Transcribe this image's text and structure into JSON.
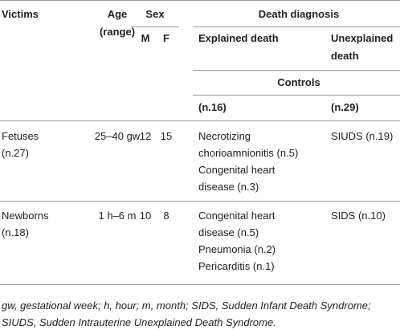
{
  "header": {
    "victims": "Victims",
    "age": [
      "Age",
      "(range)"
    ],
    "sex": "Sex",
    "sex_m": "M",
    "sex_f": "F",
    "death_diagnosis": "Death diagnosis",
    "explained": "Explained death",
    "unexplained": [
      "Unexplained",
      "death"
    ],
    "controls": "Controls",
    "explained_n": "(n.16)",
    "unexplained_n": "(n.29)"
  },
  "rows": [
    {
      "victims": [
        "Fetuses",
        "(n.27)"
      ],
      "age": "25–40 gw",
      "m": 12,
      "f": 15,
      "explained": [
        "Necrotizing",
        "chorioamnionitis (n.5)",
        "Congenital heart",
        "disease (n.3)"
      ],
      "unexplained": "SIUDS (n.19)"
    },
    {
      "victims": [
        "Newborns",
        "(n.18)"
      ],
      "age": "1 h–6 m",
      "m": 10,
      "f": 8,
      "explained": [
        "Congenital heart",
        "disease (n.5)",
        "Pneumonia (n.2)",
        "Pericarditis (n.1)"
      ],
      "unexplained": "SIDS (n.10)"
    }
  ],
  "footnote": [
    "gw, gestational week; h, hour; m, month; SIDS, Sudden Infant Death Syndrome;",
    "SIUDS, Sudden Intrauterine Unexplained Death Syndrome."
  ]
}
